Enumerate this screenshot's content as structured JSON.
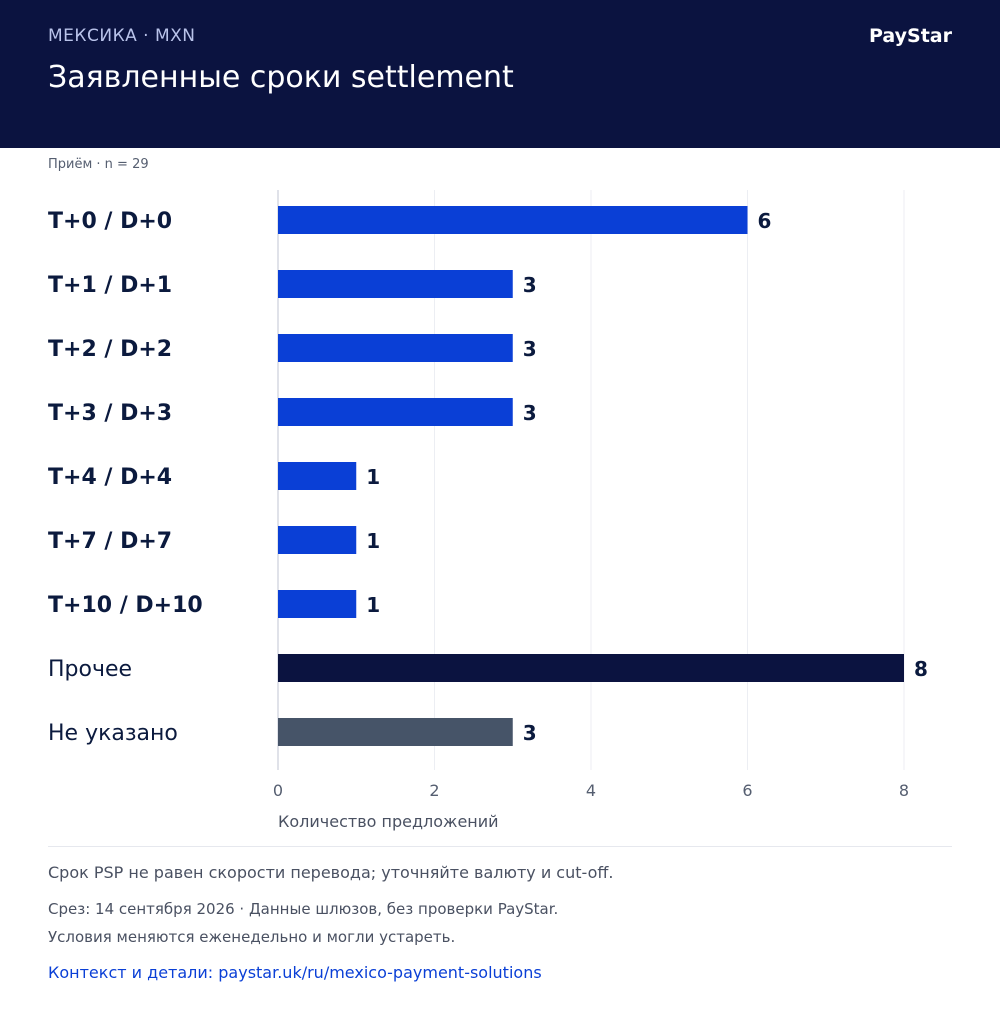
{
  "header": {
    "kicker": "МЕКСИКА · MXN",
    "title": "Заявленные сроки settlement",
    "brand": "PayStar"
  },
  "subtitle": "Приём · n = 29",
  "chart_data": {
    "type": "bar",
    "orientation": "horizontal",
    "categories": [
      "T+0 / D+0",
      "T+1 / D+1",
      "T+2 / D+2",
      "T+3 / D+3",
      "T+4 / D+4",
      "T+7 / D+7",
      "T+10 / D+10",
      "Прочее",
      "Не указано"
    ],
    "values": [
      6,
      3,
      3,
      3,
      1,
      1,
      1,
      8,
      3
    ],
    "bar_colors": [
      "#0a3fd6",
      "#0a3fd6",
      "#0a3fd6",
      "#0a3fd6",
      "#0a3fd6",
      "#0a3fd6",
      "#0a3fd6",
      "#0b1340",
      "#465468"
    ],
    "bold_categories": [
      true,
      true,
      true,
      true,
      true,
      true,
      true,
      false,
      false
    ],
    "xlabel": "Количество предложений",
    "ylabel": "",
    "xlim": [
      0,
      8
    ],
    "xticks": [
      0,
      2,
      4,
      6,
      8
    ],
    "grid": true
  },
  "footer": {
    "note": "Срок PSP не равен скорости перевода; уточняйте валюту и cut-off.",
    "cutoff": "Срез: 14 сентября 2026 · Данные шлюзов, без проверки PayStar.",
    "disclaimer": "Условия меняются еженедельно и могли устареть.",
    "link": "Контекст и детали: paystar.uk/ru/mexico-payment-solutions"
  }
}
